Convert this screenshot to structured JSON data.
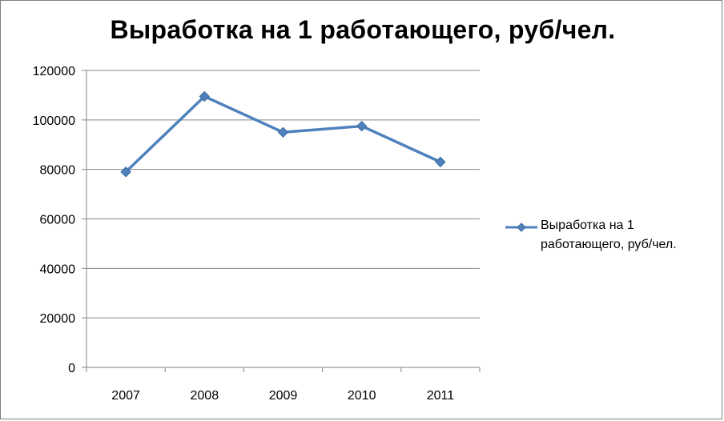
{
  "chart_data": {
    "type": "line",
    "title": "Выработка на 1 работающего, руб/чел.",
    "categories": [
      "2007",
      "2008",
      "2009",
      "2010",
      "2011"
    ],
    "series": [
      {
        "name": "Выработка на 1 работающего, руб/чел.",
        "values": [
          79000,
          109500,
          95000,
          97500,
          83000
        ],
        "color": "#4f81bd",
        "marker": "diamond"
      }
    ],
    "y_ticks": [
      "0",
      "20000",
      "40000",
      "60000",
      "80000",
      "100000",
      "120000"
    ],
    "ylim": [
      0,
      120000
    ],
    "grid": true,
    "legend_position": "right"
  },
  "legend": {
    "line1": "Выработка на 1",
    "line2": "работающего, руб/чел."
  }
}
